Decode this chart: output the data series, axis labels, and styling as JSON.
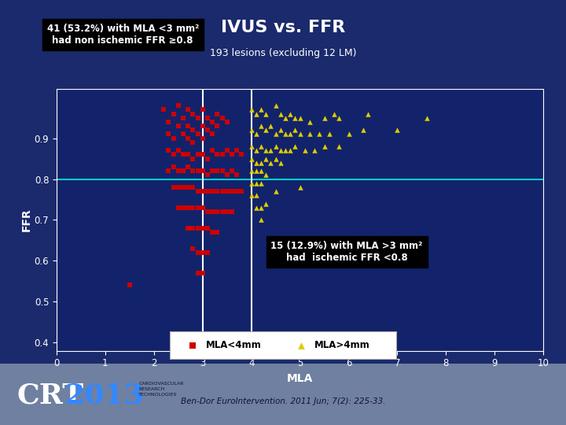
{
  "title": "IVUS vs. FFR",
  "subtitle": "193 lesions (excluding 12 LM)",
  "xlabel": "MLA",
  "ylabel": "FFR",
  "xlim": [
    0,
    10
  ],
  "ylim": [
    0.38,
    1.02
  ],
  "xticks": [
    0,
    1,
    2,
    3,
    4,
    5,
    6,
    7,
    8,
    9,
    10
  ],
  "yticks": [
    0.4,
    0.5,
    0.6,
    0.7,
    0.8,
    0.9
  ],
  "bg_outer": "#1a2a6c",
  "bg_plot": "#12236b",
  "title_color": "#ffffff",
  "axis_color": "#ffffff",
  "tick_color": "#ffffff",
  "hline_y": 0.8,
  "hline_color": "#00cccc",
  "vline_x1": 3.0,
  "vline_x2": 4.0,
  "vline_color": "#ffffff",
  "annot1_text": "41 (53.2%) with MLA <3 mm²\nhad non ischemic FFR ≥0.8",
  "annot2_text": "15 (12.9%) with MLA >3 mm²\nhad  ischemic FFR <0.8",
  "footer_bg": "#8090b0",
  "red_squares": [
    [
      1.5,
      0.54
    ],
    [
      2.2,
      0.97
    ],
    [
      2.3,
      0.94
    ],
    [
      2.3,
      0.91
    ],
    [
      2.4,
      0.96
    ],
    [
      2.5,
      0.98
    ],
    [
      2.5,
      0.93
    ],
    [
      2.4,
      0.9
    ],
    [
      2.6,
      0.95
    ],
    [
      2.6,
      0.91
    ],
    [
      2.7,
      0.97
    ],
    [
      2.7,
      0.93
    ],
    [
      2.7,
      0.9
    ],
    [
      2.8,
      0.96
    ],
    [
      2.8,
      0.92
    ],
    [
      2.8,
      0.89
    ],
    [
      2.9,
      0.95
    ],
    [
      2.9,
      0.91
    ],
    [
      3.0,
      0.97
    ],
    [
      3.0,
      0.93
    ],
    [
      3.0,
      0.9
    ],
    [
      3.1,
      0.95
    ],
    [
      3.1,
      0.92
    ],
    [
      3.2,
      0.94
    ],
    [
      3.2,
      0.91
    ],
    [
      3.3,
      0.96
    ],
    [
      3.3,
      0.93
    ],
    [
      3.4,
      0.95
    ],
    [
      3.5,
      0.94
    ],
    [
      2.3,
      0.87
    ],
    [
      2.4,
      0.86
    ],
    [
      2.5,
      0.87
    ],
    [
      2.6,
      0.86
    ],
    [
      2.7,
      0.86
    ],
    [
      2.8,
      0.85
    ],
    [
      2.9,
      0.86
    ],
    [
      3.0,
      0.86
    ],
    [
      3.1,
      0.85
    ],
    [
      3.2,
      0.87
    ],
    [
      3.3,
      0.86
    ],
    [
      3.4,
      0.86
    ],
    [
      3.5,
      0.87
    ],
    [
      3.6,
      0.86
    ],
    [
      3.7,
      0.87
    ],
    [
      3.8,
      0.86
    ],
    [
      2.3,
      0.82
    ],
    [
      2.4,
      0.83
    ],
    [
      2.5,
      0.82
    ],
    [
      2.6,
      0.82
    ],
    [
      2.7,
      0.83
    ],
    [
      2.8,
      0.82
    ],
    [
      2.9,
      0.82
    ],
    [
      3.0,
      0.82
    ],
    [
      3.1,
      0.81
    ],
    [
      3.2,
      0.82
    ],
    [
      3.3,
      0.82
    ],
    [
      3.4,
      0.82
    ],
    [
      3.5,
      0.81
    ],
    [
      3.6,
      0.82
    ],
    [
      3.7,
      0.81
    ],
    [
      2.4,
      0.78
    ],
    [
      2.5,
      0.78
    ],
    [
      2.6,
      0.78
    ],
    [
      2.7,
      0.78
    ],
    [
      2.8,
      0.78
    ],
    [
      2.9,
      0.77
    ],
    [
      3.0,
      0.77
    ],
    [
      3.1,
      0.77
    ],
    [
      3.2,
      0.77
    ],
    [
      3.3,
      0.77
    ],
    [
      3.4,
      0.77
    ],
    [
      3.5,
      0.77
    ],
    [
      3.6,
      0.77
    ],
    [
      3.7,
      0.77
    ],
    [
      3.8,
      0.77
    ],
    [
      2.5,
      0.73
    ],
    [
      2.6,
      0.73
    ],
    [
      2.7,
      0.73
    ],
    [
      2.8,
      0.73
    ],
    [
      2.9,
      0.73
    ],
    [
      3.0,
      0.73
    ],
    [
      3.1,
      0.72
    ],
    [
      3.2,
      0.72
    ],
    [
      3.3,
      0.72
    ],
    [
      3.4,
      0.72
    ],
    [
      3.5,
      0.72
    ],
    [
      3.6,
      0.72
    ],
    [
      2.7,
      0.68
    ],
    [
      2.8,
      0.68
    ],
    [
      2.9,
      0.68
    ],
    [
      3.0,
      0.68
    ],
    [
      3.1,
      0.68
    ],
    [
      3.2,
      0.67
    ],
    [
      3.3,
      0.67
    ],
    [
      2.9,
      0.62
    ],
    [
      3.0,
      0.62
    ],
    [
      3.1,
      0.62
    ],
    [
      2.8,
      0.63
    ],
    [
      3.0,
      0.57
    ],
    [
      2.9,
      0.57
    ]
  ],
  "yellow_triangles": [
    [
      4.0,
      0.97
    ],
    [
      4.1,
      0.96
    ],
    [
      4.2,
      0.97
    ],
    [
      4.3,
      0.96
    ],
    [
      4.5,
      0.98
    ],
    [
      4.6,
      0.96
    ],
    [
      4.7,
      0.95
    ],
    [
      4.8,
      0.96
    ],
    [
      4.9,
      0.95
    ],
    [
      5.0,
      0.95
    ],
    [
      5.2,
      0.94
    ],
    [
      5.5,
      0.95
    ],
    [
      5.7,
      0.96
    ],
    [
      5.8,
      0.95
    ],
    [
      6.4,
      0.96
    ],
    [
      7.6,
      0.95
    ],
    [
      4.0,
      0.92
    ],
    [
      4.1,
      0.91
    ],
    [
      4.2,
      0.93
    ],
    [
      4.3,
      0.92
    ],
    [
      4.4,
      0.93
    ],
    [
      4.5,
      0.91
    ],
    [
      4.6,
      0.92
    ],
    [
      4.7,
      0.91
    ],
    [
      4.8,
      0.91
    ],
    [
      4.9,
      0.92
    ],
    [
      5.0,
      0.91
    ],
    [
      5.2,
      0.91
    ],
    [
      5.4,
      0.91
    ],
    [
      5.6,
      0.91
    ],
    [
      6.0,
      0.91
    ],
    [
      6.3,
      0.92
    ],
    [
      7.0,
      0.92
    ],
    [
      4.0,
      0.88
    ],
    [
      4.1,
      0.87
    ],
    [
      4.2,
      0.88
    ],
    [
      4.3,
      0.87
    ],
    [
      4.4,
      0.87
    ],
    [
      4.5,
      0.88
    ],
    [
      4.6,
      0.87
    ],
    [
      4.7,
      0.87
    ],
    [
      4.8,
      0.87
    ],
    [
      4.9,
      0.88
    ],
    [
      5.1,
      0.87
    ],
    [
      5.3,
      0.87
    ],
    [
      5.5,
      0.88
    ],
    [
      5.8,
      0.88
    ],
    [
      4.0,
      0.85
    ],
    [
      4.1,
      0.84
    ],
    [
      4.2,
      0.84
    ],
    [
      4.3,
      0.85
    ],
    [
      4.4,
      0.84
    ],
    [
      4.5,
      0.85
    ],
    [
      4.6,
      0.84
    ],
    [
      4.0,
      0.82
    ],
    [
      4.1,
      0.82
    ],
    [
      4.2,
      0.82
    ],
    [
      4.3,
      0.81
    ],
    [
      4.0,
      0.79
    ],
    [
      4.1,
      0.79
    ],
    [
      4.2,
      0.79
    ],
    [
      4.0,
      0.76
    ],
    [
      4.1,
      0.76
    ],
    [
      4.1,
      0.73
    ],
    [
      4.2,
      0.73
    ],
    [
      4.2,
      0.7
    ],
    [
      5.0,
      0.78
    ],
    [
      4.5,
      0.77
    ],
    [
      4.3,
      0.74
    ]
  ]
}
